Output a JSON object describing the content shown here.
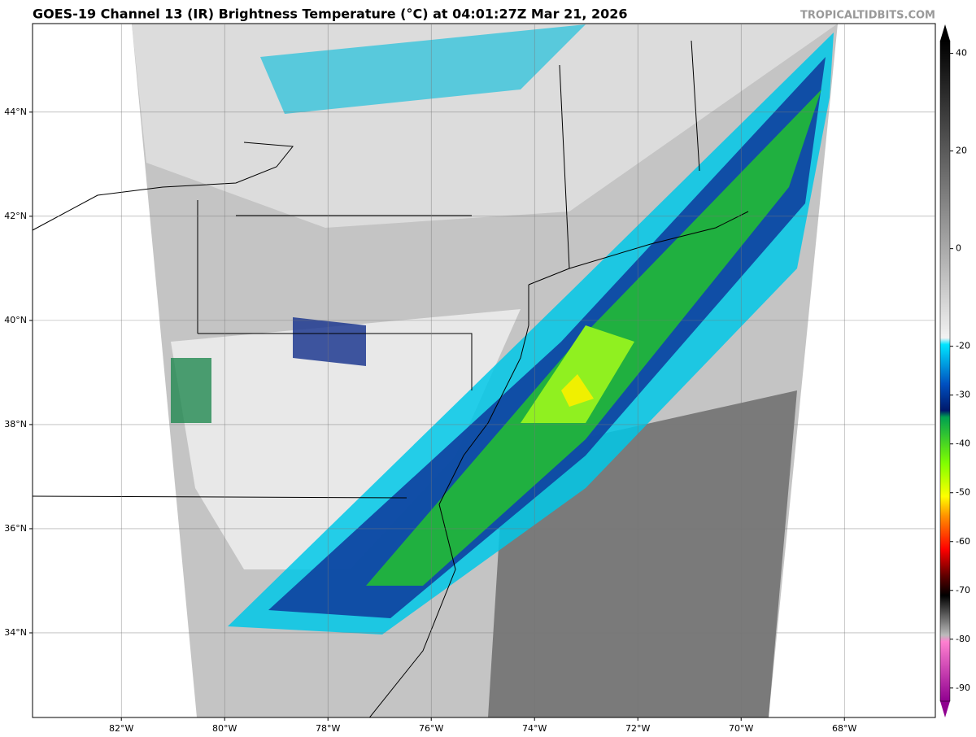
{
  "title": "GOES-19 Channel 13 (IR) Brightness Temperature (°C) at 04:01:27Z Mar 21, 2026",
  "watermark": "TROPICALTIDBITS.COM",
  "map": {
    "xlim": [
      -83.72,
      -66.24
    ],
    "ylim": [
      32.375,
      45.7
    ],
    "lon_ticks": [
      {
        "value": -82,
        "label": "82°W"
      },
      {
        "value": -80,
        "label": "80°W"
      },
      {
        "value": -78,
        "label": "78°W"
      },
      {
        "value": -76,
        "label": "76°W"
      },
      {
        "value": -74,
        "label": "74°W"
      },
      {
        "value": -72,
        "label": "72°W"
      },
      {
        "value": -70,
        "label": "70°W"
      },
      {
        "value": -68,
        "label": "68°W"
      }
    ],
    "lat_ticks": [
      {
        "value": 34,
        "label": "34°N"
      },
      {
        "value": 36,
        "label": "36°N"
      },
      {
        "value": 38,
        "label": "38°N"
      },
      {
        "value": 40,
        "label": "40°N"
      },
      {
        "value": 42,
        "label": "42°N"
      },
      {
        "value": 44,
        "label": "44°N"
      }
    ]
  },
  "colorbar": {
    "lim": [
      -92.7,
      42.6
    ],
    "ticks": [
      40,
      20,
      0,
      -20,
      -30,
      -40,
      -50,
      -60,
      -70,
      -80,
      -90
    ]
  }
}
